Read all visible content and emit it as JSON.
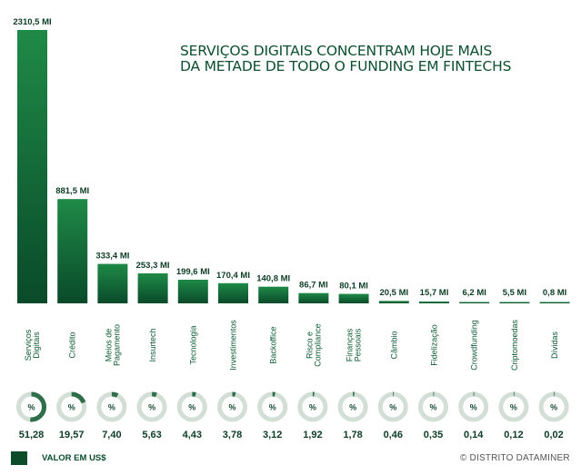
{
  "chart_data": {
    "type": "bar",
    "title": "SERVIÇOS DIGITAIS CONCENTRAM HOJE MAIS DA METADE DE TODO O FUNDING EM FINTECHS",
    "title_lines": [
      "SERVIÇOS DIGITAIS CONCENTRAM HOJE MAIS",
      "DA METADE DE TODO O FUNDING EM FINTECHS"
    ],
    "xlabel": "",
    "ylabel": "",
    "unit": "MI",
    "grid": false,
    "categories": [
      [
        "Serviços",
        "Digitais"
      ],
      [
        "Crédito"
      ],
      [
        "Meios de",
        "Pagamento"
      ],
      [
        "Insurtech"
      ],
      [
        "Tecnologia"
      ],
      [
        "Investimentos"
      ],
      [
        "Backoffice"
      ],
      [
        "Risco e",
        "Compliance"
      ],
      [
        "Finanças",
        "Pessoais"
      ],
      [
        "Câmbio"
      ],
      [
        "Fidelização"
      ],
      [
        "Crowdfunding"
      ],
      [
        "Criptomoedas"
      ],
      [
        "Dívidas"
      ]
    ],
    "values": [
      2310.5,
      881.5,
      333.4,
      253.3,
      199.6,
      170.4,
      140.8,
      86.7,
      80.1,
      20.5,
      15.7,
      6.2,
      5.5,
      0.8
    ],
    "value_labels": [
      "2310,5 MI",
      "881,5 MI",
      "333,4 MI",
      "253,3 MI",
      "199,6 MI",
      "170,4 MI",
      "140,8 MI",
      "86,7 MI",
      "80,1 MI",
      "20,5 MI",
      "15,7 MI",
      "6,2 MI",
      "5,5 MI",
      "0,8 MI"
    ],
    "share_percent": [
      51.28,
      19.57,
      7.4,
      5.63,
      4.43,
      3.78,
      3.12,
      1.92,
      1.78,
      0.46,
      0.35,
      0.14,
      0.12,
      0.02
    ],
    "share_labels": [
      "51,28",
      "19,57",
      "7,40",
      "5,63",
      "4,43",
      "3,78",
      "3,12",
      "1,92",
      "1,78",
      "0,46",
      "0,35",
      "0,14",
      "0,12",
      "0,02"
    ],
    "donut_center_label": "%",
    "ylim": [
      0,
      2310.5
    ],
    "legend": {
      "label": "VALOR EM US$",
      "placement": "bottom-left"
    }
  },
  "colors": {
    "bar_top": "#1f8a47",
    "bar_bottom": "#0a4a2a",
    "donut_track": "#d2ded6",
    "donut_fill": "#2e6e4a",
    "title": "#0d4f2f"
  },
  "credit": "© DISTRITO DATAMINER"
}
